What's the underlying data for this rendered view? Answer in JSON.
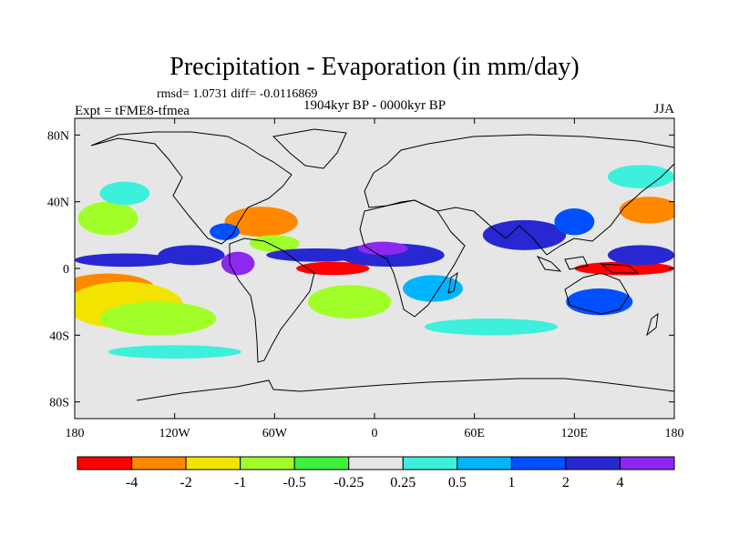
{
  "chart_data": {
    "type": "heatmap",
    "title": "Precipitation - Evaporation (in mm/day)",
    "stats_line": "rmsd= 1.0731 diff= -0.0116869",
    "subtitle": "1904kyr BP - 0000kyr BP",
    "left_label": "Expt = tFME8-tfmea",
    "right_label": "JJA",
    "xlabel": "",
    "ylabel": "",
    "lon_range": [
      -180,
      180
    ],
    "lat_range": [
      -90,
      90
    ],
    "x_ticks": [
      {
        "value": -180,
        "label": "180"
      },
      {
        "value": -120,
        "label": "120W"
      },
      {
        "value": -60,
        "label": "60W"
      },
      {
        "value": 0,
        "label": "0"
      },
      {
        "value": 60,
        "label": "60E"
      },
      {
        "value": 120,
        "label": "120E"
      },
      {
        "value": 180,
        "label": "180"
      }
    ],
    "y_ticks": [
      {
        "value": 80,
        "label": "80N"
      },
      {
        "value": 40,
        "label": "40N"
      },
      {
        "value": 0,
        "label": "0"
      },
      {
        "value": -40,
        "label": "40S"
      },
      {
        "value": -80,
        "label": "80S"
      }
    ],
    "colorbar": {
      "colors": [
        "#ff0000",
        "#ff8800",
        "#f2e400",
        "#a0ff28",
        "#3cf03c",
        "#e6e6e6",
        "#3cf0dc",
        "#00b4ff",
        "#0050ff",
        "#2828d2",
        "#8c28f0"
      ],
      "labels": [
        "-4",
        "-2",
        "-1",
        "-0.5",
        "-0.25",
        "0.25",
        "0.5",
        "1",
        "2",
        "4"
      ]
    },
    "anomaly_regions": [
      {
        "lon": -160,
        "lat": -12,
        "rx": 28,
        "ry": 9,
        "level": 1
      },
      {
        "lon": -150,
        "lat": -22,
        "rx": 35,
        "ry": 14,
        "level": 2
      },
      {
        "lon": -130,
        "lat": -30,
        "rx": 35,
        "ry": 10,
        "level": 3
      },
      {
        "lon": -150,
        "lat": 5,
        "rx": 30,
        "ry": 4,
        "level": 9
      },
      {
        "lon": -160,
        "lat": 30,
        "rx": 18,
        "ry": 10,
        "level": 3
      },
      {
        "lon": -150,
        "lat": 45,
        "rx": 15,
        "ry": 7,
        "level": 6
      },
      {
        "lon": -110,
        "lat": 8,
        "rx": 20,
        "ry": 6,
        "level": 9
      },
      {
        "lon": -82,
        "lat": 3,
        "rx": 10,
        "ry": 7,
        "level": 10
      },
      {
        "lon": -68,
        "lat": 28,
        "rx": 22,
        "ry": 9,
        "level": 1
      },
      {
        "lon": -90,
        "lat": 22,
        "rx": 9,
        "ry": 5,
        "level": 8
      },
      {
        "lon": -60,
        "lat": 15,
        "rx": 15,
        "ry": 5,
        "level": 3
      },
      {
        "lon": -25,
        "lat": 0,
        "rx": 22,
        "ry": 4,
        "level": 0
      },
      {
        "lon": -35,
        "lat": 8,
        "rx": 30,
        "ry": 4,
        "level": 9
      },
      {
        "lon": 10,
        "lat": 8,
        "rx": 32,
        "ry": 7,
        "level": 9
      },
      {
        "lon": 5,
        "lat": 12,
        "rx": 15,
        "ry": 4,
        "level": 10
      },
      {
        "lon": -15,
        "lat": -20,
        "rx": 25,
        "ry": 10,
        "level": 3
      },
      {
        "lon": 35,
        "lat": -12,
        "rx": 18,
        "ry": 8,
        "level": 7
      },
      {
        "lon": 90,
        "lat": 20,
        "rx": 25,
        "ry": 9,
        "level": 9
      },
      {
        "lon": 120,
        "lat": 28,
        "rx": 12,
        "ry": 8,
        "level": 8
      },
      {
        "lon": 150,
        "lat": 0,
        "rx": 30,
        "ry": 4,
        "level": 0
      },
      {
        "lon": 160,
        "lat": 8,
        "rx": 20,
        "ry": 6,
        "level": 9
      },
      {
        "lon": 165,
        "lat": 35,
        "rx": 18,
        "ry": 8,
        "level": 1
      },
      {
        "lon": 160,
        "lat": 55,
        "rx": 20,
        "ry": 7,
        "level": 6
      },
      {
        "lon": 135,
        "lat": -20,
        "rx": 20,
        "ry": 8,
        "level": 8
      },
      {
        "lon": 70,
        "lat": -35,
        "rx": 40,
        "ry": 5,
        "level": 6
      },
      {
        "lon": -120,
        "lat": -50,
        "rx": 40,
        "ry": 4,
        "level": 6
      }
    ]
  }
}
